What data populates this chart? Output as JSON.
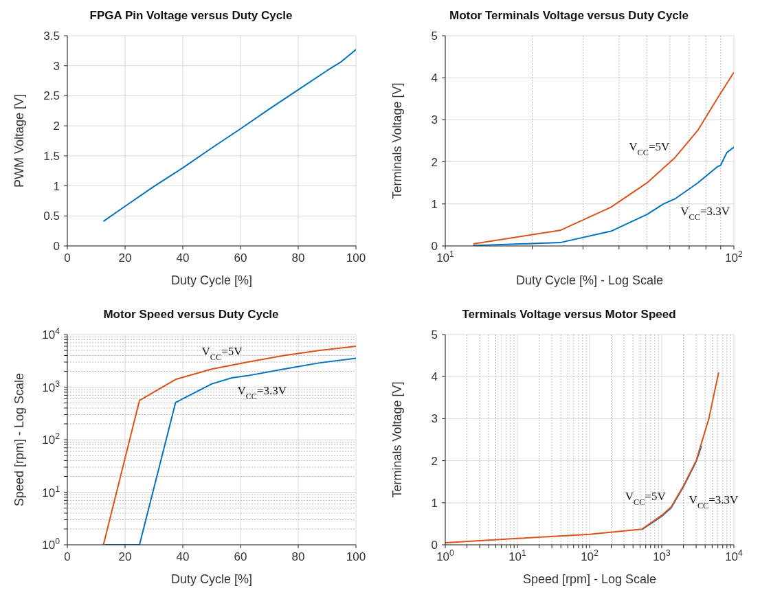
{
  "chart_data": [
    {
      "type": "line",
      "title": "FPGA Pin Voltage versus Duty Cycle",
      "xlabel": "Duty Cycle [%]",
      "ylabel": "PWM Voltage [V]",
      "xlim": [
        0,
        100
      ],
      "xticks": [
        0,
        20,
        40,
        60,
        80,
        100
      ],
      "ylim": [
        0,
        3.5
      ],
      "yticks": [
        0,
        0.5,
        1,
        1.5,
        2,
        2.5,
        3,
        3.5
      ],
      "grid": true,
      "series": [
        {
          "color": "#0072bd",
          "x": [
            12.5,
            20,
            30,
            40,
            50,
            60,
            70,
            80,
            90,
            95,
            100
          ],
          "values": [
            0.41,
            0.66,
            0.99,
            1.3,
            1.63,
            1.95,
            2.28,
            2.6,
            2.92,
            3.07,
            3.27
          ]
        }
      ]
    },
    {
      "type": "line",
      "title": "Motor Terminals Voltage versus Duty Cycle",
      "xlabel": "Duty Cycle [%] - Log Scale",
      "ylabel": "Terminals Voltage [V]",
      "log": "x",
      "xlim": [
        10,
        100
      ],
      "xticks": [
        {
          "value": 10,
          "label": "10$^{1}$"
        },
        {
          "value": 20,
          "label": null
        },
        {
          "value": 30,
          "label": null
        },
        {
          "value": 40,
          "label": null
        },
        {
          "value": 50,
          "label": null
        },
        {
          "value": 60,
          "label": null
        },
        {
          "value": 70,
          "label": null
        },
        {
          "value": 80,
          "label": null
        },
        {
          "value": 90,
          "label": null
        },
        {
          "value": 100,
          "label": "10$^{2}$"
        }
      ],
      "ylim": [
        0,
        5
      ],
      "yticks": [
        0,
        1,
        2,
        3,
        4,
        5
      ],
      "grid": true,
      "series": [
        {
          "name": "V$_{CC}$=3.3V",
          "color": "#0072bd",
          "x": [
            12.5,
            25,
            37.5,
            50,
            57,
            62.5,
            75,
            87.5,
            90,
            94.5,
            100
          ],
          "values": [
            0.01,
            0.08,
            0.35,
            0.75,
            1.0,
            1.12,
            1.5,
            1.88,
            1.92,
            2.22,
            2.35
          ]
        },
        {
          "name": "V$_{CC}$=5V",
          "color": "#d95319",
          "x": [
            12.5,
            25,
            37.5,
            50,
            62.5,
            75,
            87.5,
            100
          ],
          "values": [
            0.05,
            0.37,
            0.92,
            1.5,
            2.1,
            2.75,
            3.5,
            4.13
          ]
        }
      ]
    },
    {
      "type": "line",
      "title": "Motor Speed versus Duty Cycle",
      "xlabel": "Duty Cycle [%]",
      "ylabel": "Speed [rpm] - Log Scale",
      "log": "y",
      "xlim": [
        0,
        100
      ],
      "xticks": [
        0,
        20,
        40,
        60,
        80,
        100
      ],
      "ylim": [
        1,
        10000
      ],
      "yticks": [
        {
          "value": 1,
          "label": "10$^{0}$"
        },
        {
          "value": 2,
          "label": null
        },
        {
          "value": 3,
          "label": null
        },
        {
          "value": 4,
          "label": null
        },
        {
          "value": 5,
          "label": null
        },
        {
          "value": 6,
          "label": null
        },
        {
          "value": 7,
          "label": null
        },
        {
          "value": 8,
          "label": null
        },
        {
          "value": 9,
          "label": null
        },
        {
          "value": 10,
          "label": "10$^{1}$"
        },
        {
          "value": 20,
          "label": null
        },
        {
          "value": 30,
          "label": null
        },
        {
          "value": 40,
          "label": null
        },
        {
          "value": 50,
          "label": null
        },
        {
          "value": 60,
          "label": null
        },
        {
          "value": 70,
          "label": null
        },
        {
          "value": 80,
          "label": null
        },
        {
          "value": 90,
          "label": null
        },
        {
          "value": 100,
          "label": "10$^{2}$"
        },
        {
          "value": 200,
          "label": null
        },
        {
          "value": 300,
          "label": null
        },
        {
          "value": 400,
          "label": null
        },
        {
          "value": 500,
          "label": null
        },
        {
          "value": 600,
          "label": null
        },
        {
          "value": 700,
          "label": null
        },
        {
          "value": 800,
          "label": null
        },
        {
          "value": 900,
          "label": null
        },
        {
          "value": 1000,
          "label": "10$^{3}$"
        },
        {
          "value": 2000,
          "label": null
        },
        {
          "value": 3000,
          "label": null
        },
        {
          "value": 4000,
          "label": null
        },
        {
          "value": 5000,
          "label": null
        },
        {
          "value": 6000,
          "label": null
        },
        {
          "value": 7000,
          "label": null
        },
        {
          "value": 8000,
          "label": null
        },
        {
          "value": 9000,
          "label": null
        },
        {
          "value": 10000,
          "label": "10$^{4}$"
        }
      ],
      "grid": true,
      "series": [
        {
          "name": "V$_{CC}$=3.3V",
          "color": "#0072bd",
          "x": [
            13,
            25,
            37.5,
            50,
            57,
            62.5,
            75,
            87.5,
            100
          ],
          "values": [
            1,
            1,
            510,
            1150,
            1500,
            1650,
            2200,
            2900,
            3550
          ]
        },
        {
          "name": "V$_{CC}$=5V",
          "color": "#d95319",
          "x": [
            12.5,
            25,
            37.5,
            50,
            62.5,
            75,
            87.5,
            100
          ],
          "values": [
            1,
            560,
            1400,
            2200,
            3000,
            4000,
            5000,
            6000
          ]
        }
      ]
    },
    {
      "type": "line",
      "title": "Terminals Voltage versus Motor Speed",
      "xlabel": "Speed [rpm] - Log Scale",
      "ylabel": "Terminals Voltage [V]",
      "log": "x",
      "xlim": [
        1,
        10000
      ],
      "xticks": [
        {
          "value": 1,
          "label": "10$^{0}$"
        },
        {
          "value": 2,
          "label": null
        },
        {
          "value": 3,
          "label": null
        },
        {
          "value": 4,
          "label": null
        },
        {
          "value": 5,
          "label": null
        },
        {
          "value": 6,
          "label": null
        },
        {
          "value": 7,
          "label": null
        },
        {
          "value": 8,
          "label": null
        },
        {
          "value": 9,
          "label": null
        },
        {
          "value": 10,
          "label": "10$^{1}$"
        },
        {
          "value": 20,
          "label": null
        },
        {
          "value": 30,
          "label": null
        },
        {
          "value": 40,
          "label": null
        },
        {
          "value": 50,
          "label": null
        },
        {
          "value": 60,
          "label": null
        },
        {
          "value": 70,
          "label": null
        },
        {
          "value": 80,
          "label": null
        },
        {
          "value": 90,
          "label": null
        },
        {
          "value": 100,
          "label": "10$^{2}$"
        },
        {
          "value": 200,
          "label": null
        },
        {
          "value": 300,
          "label": null
        },
        {
          "value": 400,
          "label": null
        },
        {
          "value": 500,
          "label": null
        },
        {
          "value": 600,
          "label": null
        },
        {
          "value": 700,
          "label": null
        },
        {
          "value": 800,
          "label": null
        },
        {
          "value": 900,
          "label": null
        },
        {
          "value": 1000,
          "label": "10$^{3}$"
        },
        {
          "value": 2000,
          "label": null
        },
        {
          "value": 3000,
          "label": null
        },
        {
          "value": 4000,
          "label": null
        },
        {
          "value": 5000,
          "label": null
        },
        {
          "value": 6000,
          "label": null
        },
        {
          "value": 7000,
          "label": null
        },
        {
          "value": 8000,
          "label": null
        },
        {
          "value": 9000,
          "label": null
        },
        {
          "value": 10000,
          "label": "10$^{4}$"
        }
      ],
      "ylim": [
        0,
        5
      ],
      "yticks": [
        0,
        1,
        2,
        3,
        4,
        5
      ],
      "grid": true,
      "series": [
        {
          "name": "V$_{CC}$=3.3V",
          "color": "#0072bd",
          "x": [
            530,
            1000,
            1350,
            2000,
            3000,
            3550
          ],
          "values": [
            0.36,
            0.68,
            0.88,
            1.38,
            1.98,
            2.35
          ]
        },
        {
          "name": "V$_{CC}$=5V",
          "color": "#d95319",
          "x": [
            1,
            10,
            100,
            530,
            1000,
            1350,
            2000,
            3000,
            4500,
            6150
          ],
          "values": [
            0.05,
            0.15,
            0.25,
            0.37,
            0.7,
            0.9,
            1.4,
            2.0,
            3.0,
            4.1
          ]
        }
      ]
    }
  ]
}
